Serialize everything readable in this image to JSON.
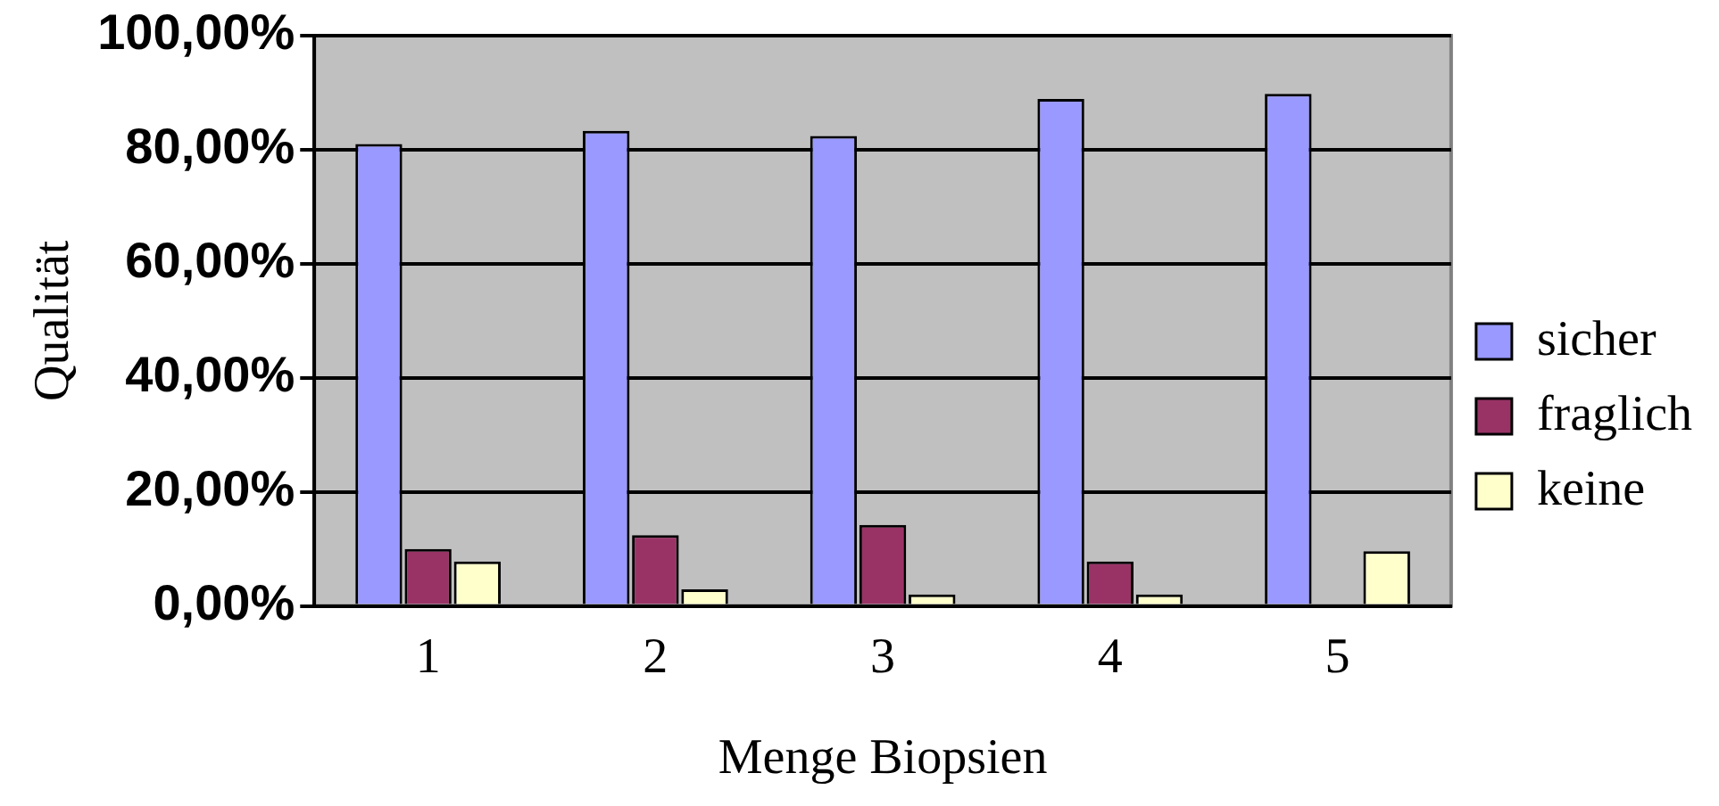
{
  "chart_data": {
    "type": "bar",
    "xlabel": "Menge Biopsien",
    "ylabel": "Qualität",
    "categories": [
      "1",
      "2",
      "3",
      "4",
      "5"
    ],
    "series": [
      {
        "name": "sicher",
        "color": "#9999ff",
        "values": [
          81,
          83.3,
          82.4,
          88.9,
          89.8
        ]
      },
      {
        "name": "fraglich",
        "color": "#993366",
        "values": [
          10,
          12.4,
          14.2,
          7.8,
          0
        ]
      },
      {
        "name": "keine",
        "color": "#ffffcc",
        "values": [
          7.8,
          2.9,
          2,
          2,
          9.6
        ]
      }
    ],
    "ylim": [
      0,
      100
    ],
    "yticks": [
      {
        "value": 0,
        "label": "0,00%"
      },
      {
        "value": 20,
        "label": "20,00%"
      },
      {
        "value": 40,
        "label": "40,00%"
      },
      {
        "value": 60,
        "label": "60,00%"
      },
      {
        "value": 80,
        "label": "80,00%"
      },
      {
        "value": 100,
        "label": "100,00%"
      }
    ],
    "grid": "y",
    "legend": "right"
  }
}
